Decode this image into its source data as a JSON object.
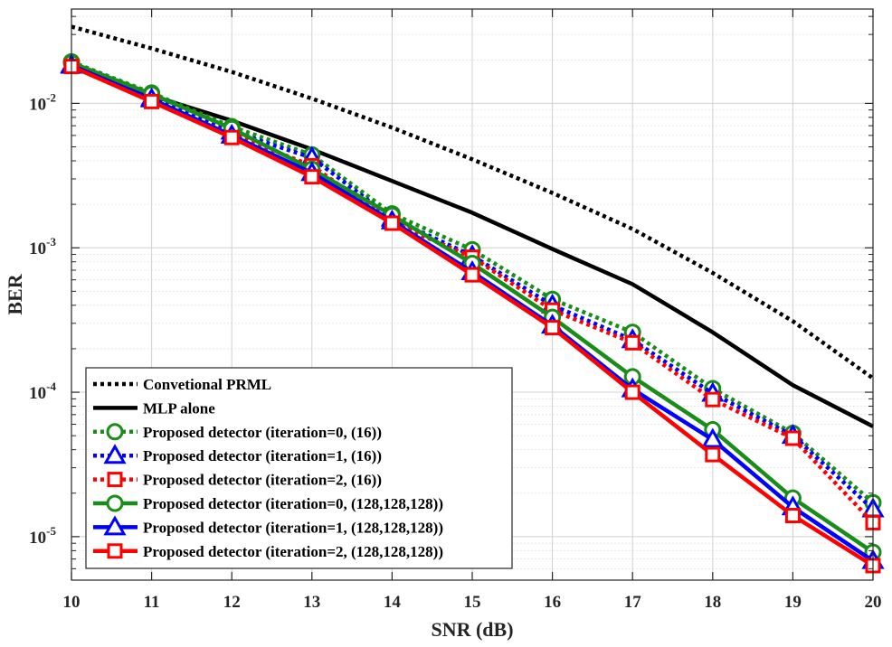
{
  "chart_data": {
    "type": "line",
    "title": "",
    "xlabel": "SNR (dB)",
    "ylabel": "BER",
    "xlim": [
      10,
      20
    ],
    "ylim": [
      5e-06,
      0.045
    ],
    "yscale": "log",
    "grid": true,
    "legend_position": "bottom-left",
    "x": [
      10,
      11,
      12,
      13,
      14,
      15,
      16,
      17,
      18,
      19,
      20
    ],
    "x_tick_labels": [
      "10",
      "11",
      "12",
      "13",
      "14",
      "15",
      "16",
      "17",
      "18",
      "19",
      "20"
    ],
    "y_tick_labels": [
      {
        "base": "10",
        "exp": "-5"
      },
      {
        "base": "10",
        "exp": "-4"
      },
      {
        "base": "10",
        "exp": "-3"
      },
      {
        "base": "10",
        "exp": "-2"
      }
    ],
    "series": [
      {
        "name": "Convetional PRML",
        "color": "#000000",
        "style": "dotted",
        "marker": "none",
        "values": [
          0.034,
          0.024,
          0.0165,
          0.0108,
          0.0068,
          0.0041,
          0.0024,
          0.00135,
          0.00067,
          0.00031,
          0.000125
        ]
      },
      {
        "name": "MLP alone",
        "color": "#000000",
        "style": "solid",
        "marker": "none",
        "values": [
          0.0185,
          0.0113,
          0.0076,
          0.0048,
          0.0029,
          0.00175,
          0.00098,
          0.00056,
          0.00026,
          0.000112,
          5.8e-05
        ]
      },
      {
        "name": "Proposed detector (iteration=0, (16))",
        "color": "#1a8c1a",
        "style": "dotted",
        "marker": "circle",
        "values": [
          0.0194,
          0.0118,
          0.0069,
          0.0044,
          0.00172,
          0.00097,
          0.00044,
          0.00026,
          0.000106,
          5.2e-05,
          1.72e-05
        ]
      },
      {
        "name": "Proposed detector (iteration=1, (16))",
        "color": "#0000ff",
        "style": "dotted",
        "marker": "triangle",
        "values": [
          0.0185,
          0.0109,
          0.0064,
          0.0042,
          0.0016,
          0.00088,
          0.0004,
          0.00023,
          9.8e-05,
          5e-05,
          1.55e-05
        ]
      },
      {
        "name": "Proposed detector (iteration=2, (16))",
        "color": "#ff0000",
        "style": "dotted",
        "marker": "square",
        "values": [
          0.0182,
          0.0104,
          0.0061,
          0.0037,
          0.0015,
          0.00086,
          0.00037,
          0.00022,
          8.9e-05,
          4.8e-05,
          1.25e-05
        ]
      },
      {
        "name": "Proposed detector (iteration=0, (128,128,128))",
        "color": "#1a8c1a",
        "style": "solid",
        "marker": "circle",
        "values": [
          0.0191,
          0.0116,
          0.0067,
          0.0035,
          0.00168,
          0.00078,
          0.00033,
          0.000128,
          5.5e-05,
          1.85e-05,
          7.8e-06
        ]
      },
      {
        "name": "Proposed detector (iteration=1, (128,128,128))",
        "color": "#0000ff",
        "style": "solid",
        "marker": "triangle",
        "values": [
          0.0183,
          0.0107,
          0.006,
          0.0033,
          0.00153,
          0.00068,
          0.00029,
          0.000105,
          4.7e-05,
          1.6e-05,
          6.8e-06
        ]
      },
      {
        "name": "Proposed detector (iteration=2, (128,128,128))",
        "color": "#ff0000",
        "style": "solid",
        "marker": "square",
        "values": [
          0.018,
          0.0103,
          0.0058,
          0.0031,
          0.00148,
          0.00065,
          0.00028,
          0.0001,
          3.7e-05,
          1.4e-05,
          6.3e-06
        ]
      }
    ]
  }
}
